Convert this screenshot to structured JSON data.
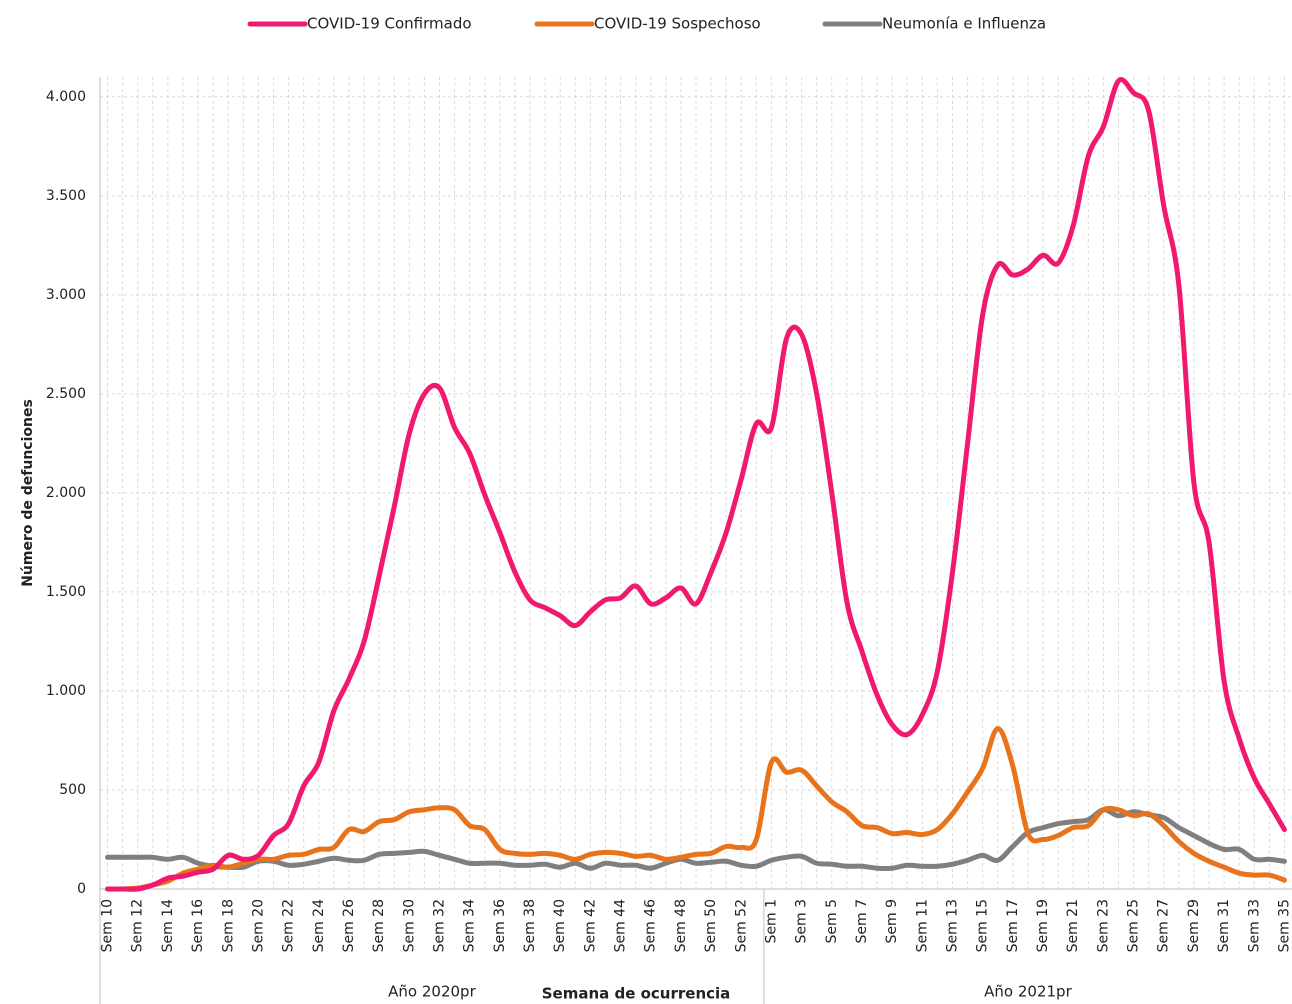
{
  "chart_data": {
    "type": "line",
    "x_label": "Semana de ocurrencia",
    "y_label": "Número de defunciones",
    "groups": [
      {
        "label": "Año 2020pr"
      },
      {
        "label": "Año 2021pr"
      }
    ],
    "categories": [
      "Sem 10",
      null,
      "Sem 12",
      null,
      "Sem 14",
      null,
      "Sem 16",
      null,
      "Sem 18",
      null,
      "Sem 20",
      null,
      "Sem 22",
      null,
      "Sem 24",
      null,
      "Sem 26",
      null,
      "Sem 28",
      null,
      "Sem 30",
      null,
      "Sem 32",
      null,
      "Sem 34",
      null,
      "Sem 36",
      null,
      "Sem 38",
      null,
      "Sem 40",
      null,
      "Sem 42",
      null,
      "Sem 44",
      null,
      "Sem 46",
      null,
      "Sem 48",
      null,
      "Sem 50",
      null,
      "Sem 52",
      null,
      "Sem 1",
      null,
      "Sem 3",
      null,
      "Sem 5",
      null,
      "Sem 7",
      null,
      "Sem 9",
      null,
      "Sem 11",
      null,
      "Sem 13",
      null,
      "Sem 15",
      null,
      "Sem 17",
      null,
      "Sem 19",
      null,
      "Sem 21",
      null,
      "Sem 23",
      null,
      "Sem 25",
      null,
      "Sem 27",
      null,
      "Sem 29",
      null,
      "Sem 31",
      null,
      "Sem 33",
      null,
      "Sem 35"
    ],
    "series": [
      {
        "name": "COVID-19 Confirmado",
        "color": "#f0196e",
        "values": [
          0,
          0,
          0,
          20,
          55,
          65,
          85,
          100,
          170,
          150,
          170,
          270,
          330,
          520,
          640,
          900,
          1060,
          1250,
          1580,
          1930,
          2300,
          2500,
          2530,
          2330,
          2200,
          1990,
          1800,
          1600,
          1460,
          1420,
          1380,
          1330,
          1400,
          1460,
          1470,
          1530,
          1440,
          1470,
          1520,
          1440,
          1600,
          1800,
          2070,
          2350,
          2330,
          2780,
          2800,
          2500,
          2000,
          1450,
          1200,
          980,
          830,
          780,
          880,
          1100,
          1600,
          2250,
          2900,
          3150,
          3100,
          3130,
          3200,
          3160,
          3350,
          3700,
          3850,
          4080,
          4020,
          3930,
          3450,
          3050,
          2050,
          1750,
          1050,
          760,
          560,
          430,
          300
        ]
      },
      {
        "name": "COVID-19 Sospechoso",
        "color": "#e8731a",
        "values": [
          0,
          0,
          5,
          20,
          40,
          80,
          100,
          120,
          110,
          130,
          150,
          150,
          170,
          175,
          200,
          210,
          300,
          290,
          340,
          350,
          390,
          400,
          410,
          400,
          320,
          300,
          200,
          180,
          175,
          180,
          170,
          150,
          175,
          185,
          180,
          165,
          170,
          150,
          160,
          175,
          180,
          215,
          210,
          250,
          640,
          590,
          600,
          520,
          440,
          390,
          320,
          310,
          280,
          285,
          275,
          300,
          380,
          490,
          610,
          810,
          620,
          280,
          250,
          270,
          310,
          320,
          400,
          400,
          370,
          380,
          320,
          240,
          180,
          140,
          110,
          80,
          70,
          70,
          45
        ]
      },
      {
        "name": "Neumonía e Influenza",
        "color": "#7f7f7f",
        "values": [
          160,
          160,
          160,
          160,
          150,
          160,
          130,
          115,
          110,
          110,
          140,
          140,
          120,
          125,
          140,
          155,
          145,
          145,
          175,
          180,
          185,
          190,
          170,
          150,
          130,
          130,
          130,
          120,
          120,
          125,
          110,
          130,
          105,
          130,
          120,
          120,
          105,
          130,
          150,
          130,
          135,
          140,
          120,
          115,
          145,
          160,
          165,
          130,
          125,
          115,
          115,
          105,
          105,
          120,
          115,
          115,
          125,
          145,
          170,
          145,
          215,
          285,
          310,
          330,
          340,
          350,
          400,
          370,
          390,
          375,
          360,
          310,
          270,
          230,
          200,
          200,
          150,
          150,
          140
        ]
      }
    ],
    "ylim": [
      0,
      4100
    ],
    "yticks": [
      0,
      500,
      {
        "value": 1000,
        "label": "1.000"
      },
      {
        "value": 1500,
        "label": "1.500"
      },
      {
        "value": 2000,
        "label": "2.000"
      },
      {
        "value": 2500,
        "label": "2.500"
      },
      {
        "value": 3000,
        "label": "3.000"
      },
      {
        "value": 3500,
        "label": "3.500"
      },
      {
        "value": 4000,
        "label": "4.000"
      }
    ],
    "grid": true,
    "legend": "top"
  }
}
